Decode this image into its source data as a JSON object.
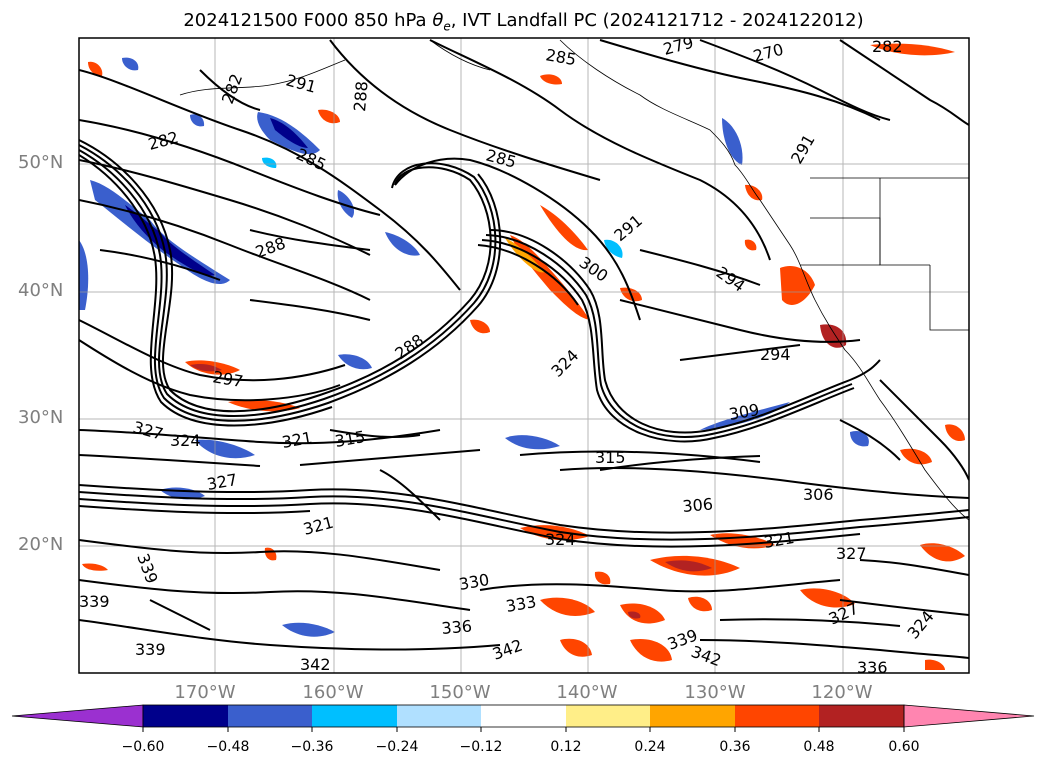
{
  "title": {
    "prefix": "2024121500 F000 850 hPa ",
    "theta": "θ",
    "theta_sub": "e",
    "suffix": ", IVT Landfall PC (2024121712 - 2024122012)"
  },
  "axes": {
    "lat_labels": [
      "50°N",
      "40°N",
      "30°N",
      "20°N"
    ],
    "lon_labels": [
      "170°W",
      "160°W",
      "150°W",
      "140°W",
      "130°W",
      "120°W"
    ]
  },
  "colorbar": {
    "colors": [
      "#9b30d0",
      "#00008b",
      "#3a5fcd",
      "#00bfff",
      "#b0e0ff",
      "#ffffff",
      "#ffee88",
      "#ffa500",
      "#ff4500",
      "#b22222",
      "#ff85b0"
    ],
    "tick_labels": [
      "−0.60",
      "−0.48",
      "−0.36",
      "−0.24",
      "−0.12",
      "0.12",
      "0.24",
      "0.36",
      "0.48",
      "0.60"
    ]
  },
  "contour_labels": [
    {
      "text": "285"
    },
    {
      "text": "279"
    },
    {
      "text": "270"
    },
    {
      "text": "282"
    },
    {
      "text": "291"
    },
    {
      "text": "288"
    },
    {
      "text": "282"
    },
    {
      "text": "282"
    },
    {
      "text": "285"
    },
    {
      "text": "285"
    },
    {
      "text": "291"
    },
    {
      "text": "288"
    },
    {
      "text": "291"
    },
    {
      "text": "300"
    },
    {
      "text": "294"
    },
    {
      "text": "294"
    },
    {
      "text": "297"
    },
    {
      "text": "288"
    },
    {
      "text": "324"
    },
    {
      "text": "309"
    },
    {
      "text": "327"
    },
    {
      "text": "324"
    },
    {
      "text": "321"
    },
    {
      "text": "315"
    },
    {
      "text": "315"
    },
    {
      "text": "306"
    },
    {
      "text": "306"
    },
    {
      "text": "321"
    },
    {
      "text": "327"
    },
    {
      "text": "330"
    },
    {
      "text": "333"
    },
    {
      "text": "336"
    },
    {
      "text": "342"
    },
    {
      "text": "339"
    },
    {
      "text": "342"
    },
    {
      "text": "339"
    },
    {
      "text": "339"
    },
    {
      "text": "336"
    },
    {
      "text": "327"
    },
    {
      "text": "324"
    },
    {
      "text": "339"
    },
    {
      "text": "342"
    },
    {
      "text": "327"
    },
    {
      "text": "324"
    },
    {
      "text": "321"
    }
  ]
}
